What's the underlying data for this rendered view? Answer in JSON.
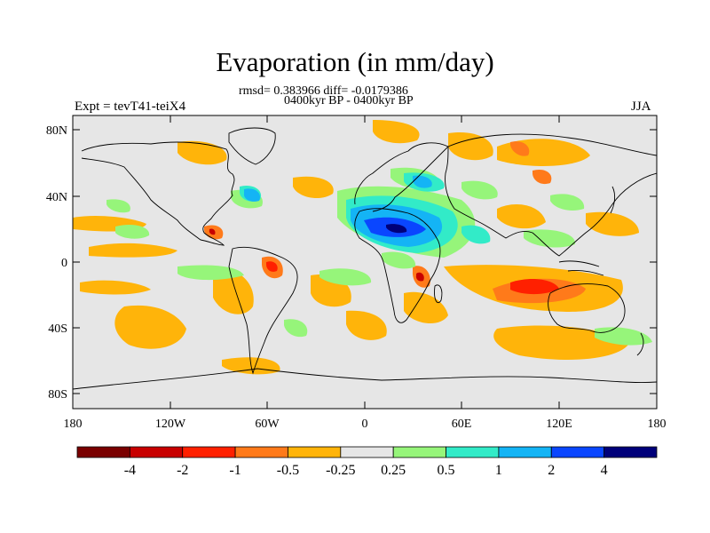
{
  "title": "Evaporation (in mm/day)",
  "stats": "rmsd= 0.383966 diff= -0.0179386",
  "period": "0400kyr BP - 0400kyr BP",
  "expt": "Expt = tevT41-teiX4",
  "season": "JJA",
  "lat_labels": [
    "80N",
    "40N",
    "0",
    "40S",
    "80S"
  ],
  "lon_labels": [
    "180",
    "120W",
    "60W",
    "0",
    "60E",
    "120E",
    "180"
  ],
  "colorbar": {
    "colors": [
      "#7a0000",
      "#c80000",
      "#ff2000",
      "#ff7a1a",
      "#ffb40a",
      "#e6e6e6",
      "#96f57a",
      "#32ebc8",
      "#14b4f5",
      "#0a46ff",
      "#00007a"
    ],
    "labels": [
      "-4",
      "-2",
      "-1",
      "-0.5",
      "-0.25",
      "0.25",
      "0.5",
      "1",
      "2",
      "4"
    ]
  }
}
